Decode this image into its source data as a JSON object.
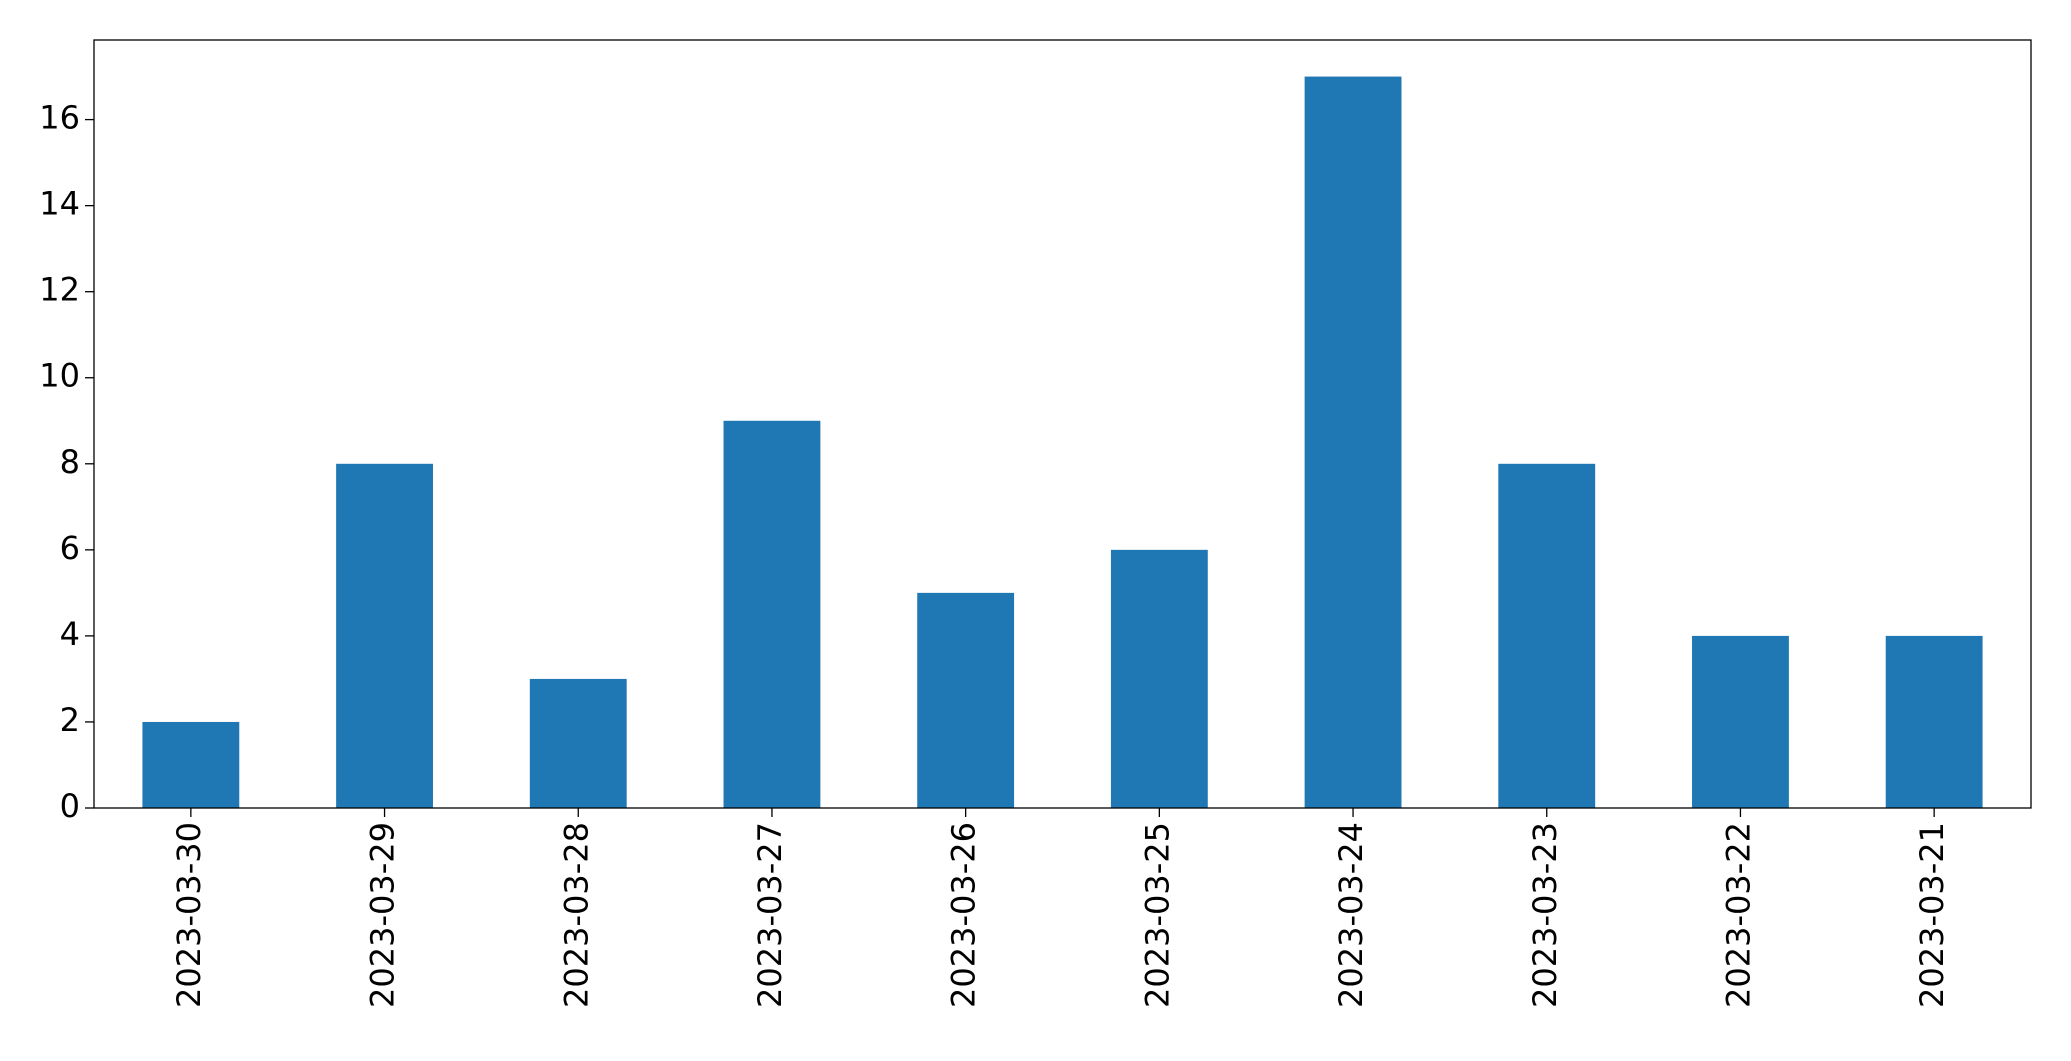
{
  "chart_data": {
    "type": "bar",
    "categories": [
      "2023-03-30",
      "2023-03-29",
      "2023-03-28",
      "2023-03-27",
      "2023-03-26",
      "2023-03-25",
      "2023-03-24",
      "2023-03-23",
      "2023-03-22",
      "2023-03-21"
    ],
    "values": [
      2,
      8,
      3,
      9,
      5,
      6,
      17,
      8,
      4,
      4
    ],
    "color": "#1f77b4",
    "ylim": [
      0,
      17.85
    ],
    "yticks": [
      0,
      2,
      4,
      6,
      8,
      10,
      12,
      14,
      16
    ],
    "grid": false
  }
}
